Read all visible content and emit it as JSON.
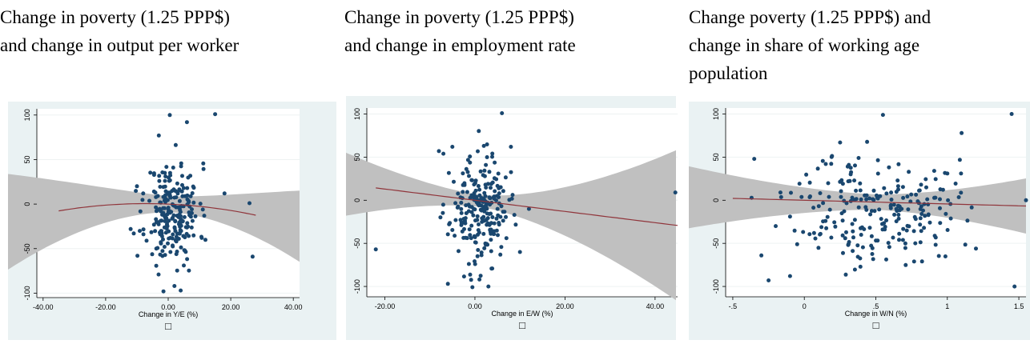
{
  "chart_data": [
    {
      "type": "scatter",
      "title": [
        "Change in poverty (1.25 PPP$)",
        "and change in output per worker"
      ],
      "xlabel": "Change in Y/E (%)",
      "ylabel": "",
      "xlim": [
        -42,
        42
      ],
      "ylim": [
        -105,
        107
      ],
      "x_ticks": [
        "-40.00",
        "-20.00",
        "0.00",
        "20.00",
        "40.00"
      ],
      "y_ticks": [
        "-100",
        "-50",
        "0",
        "50",
        "100"
      ],
      "x_tick_values": [
        -40,
        -20,
        0,
        20,
        40
      ],
      "y_tick_values": [
        -100,
        -50,
        0,
        50,
        100
      ],
      "legend_marker": "□",
      "fit": {
        "x0": -35,
        "x1": 28,
        "a": 0.0,
        "b": -0.15,
        "c": -0.0105
      },
      "band": {
        "left_half_width": 62,
        "min_half_width": 9,
        "right_half_width": 40
      },
      "point_gen": {
        "n": 230,
        "seed": 11,
        "xc": 1.5,
        "xs": 4.2,
        "yc": -10,
        "ys": 28
      },
      "points": [
        [
          -12,
          -28
        ],
        [
          -11,
          -33
        ],
        [
          -10,
          20
        ],
        [
          -8,
          12
        ],
        [
          15,
          101
        ],
        [
          0.5,
          100
        ],
        [
          18,
          12
        ],
        [
          27,
          -59
        ],
        [
          26,
          1
        ],
        [
          -1.5,
          -98
        ],
        [
          4,
          -97
        ],
        [
          6,
          92
        ],
        [
          2,
          -92
        ],
        [
          -3,
          77
        ]
      ]
    },
    {
      "type": "scatter",
      "title": [
        "Change in poverty (1.25 PPP$)",
        "and change in employment rate"
      ],
      "xlabel": "Change in E/W (%)",
      "ylabel": "",
      "xlim": [
        -24,
        45
      ],
      "ylim": [
        -112,
        107
      ],
      "x_ticks": [
        "-20.00",
        "0.00",
        "20.00",
        "40.00"
      ],
      "y_ticks": [
        "-100",
        "-50",
        "0",
        "50",
        "100"
      ],
      "x_tick_values": [
        -20,
        0,
        20,
        40
      ],
      "y_tick_values": [
        -100,
        -50,
        0,
        50,
        100
      ],
      "legend_marker": "□",
      "fit": {
        "x0": -22,
        "x1": 45,
        "a": 0.0,
        "b": -0.65,
        "c": 0.0
      },
      "band": {
        "left_half_width": 50,
        "min_half_width": 7,
        "right_half_width": 88
      },
      "point_gen": {
        "n": 230,
        "seed": 23,
        "xc": 1,
        "xs": 3.2,
        "yc": -12,
        "ys": 30
      },
      "points": [
        [
          -22,
          -57
        ],
        [
          6,
          101
        ],
        [
          -8,
          57
        ],
        [
          -7,
          54
        ],
        [
          -5,
          62
        ],
        [
          8,
          62
        ],
        [
          7,
          -44
        ],
        [
          10,
          -60
        ],
        [
          12,
          -10
        ],
        [
          44.5,
          9
        ],
        [
          -6,
          -97
        ],
        [
          3,
          -100
        ],
        [
          1,
          -92
        ]
      ]
    },
    {
      "type": "scatter",
      "title": [
        "Change poverty (1.25 PPP$) and",
        "change in share of working age",
        "population"
      ],
      "xlabel": "Change in W/N (%)",
      "ylabel": "",
      "xlim": [
        -0.55,
        1.55
      ],
      "ylim": [
        -112,
        107
      ],
      "x_ticks": [
        "-.5",
        "0",
        ".5",
        "1",
        "1.5"
      ],
      "y_ticks": [
        "-100",
        "-50",
        "0",
        "50",
        "100"
      ],
      "x_tick_values": [
        -0.5,
        0,
        0.5,
        1,
        1.5
      ],
      "y_tick_values": [
        -100,
        -50,
        0,
        50,
        100
      ],
      "legend_marker": "□",
      "fit": {
        "x0": -0.5,
        "x1": 1.55,
        "a": 0.0,
        "b": -4.3,
        "c": 0.0
      },
      "band": {
        "left_half_width": 40,
        "min_half_width": 9,
        "right_half_width": 32
      },
      "point_gen": {
        "n": 230,
        "seed": 37,
        "xc": 0.5,
        "xs": 0.28,
        "yc": -10,
        "ys": 32
      },
      "points": [
        [
          -0.35,
          48
        ],
        [
          -0.3,
          -64
        ],
        [
          -0.25,
          -93
        ],
        [
          -0.1,
          -88
        ],
        [
          -0.05,
          -51
        ],
        [
          -0.2,
          -30
        ],
        [
          0.55,
          99
        ],
        [
          1.1,
          78
        ],
        [
          1.45,
          100
        ],
        [
          1.47,
          -100
        ],
        [
          1.55,
          0
        ],
        [
          1.2,
          -56
        ],
        [
          1.0,
          31
        ],
        [
          0.25,
          67
        ],
        [
          0.15,
          42
        ]
      ]
    }
  ]
}
